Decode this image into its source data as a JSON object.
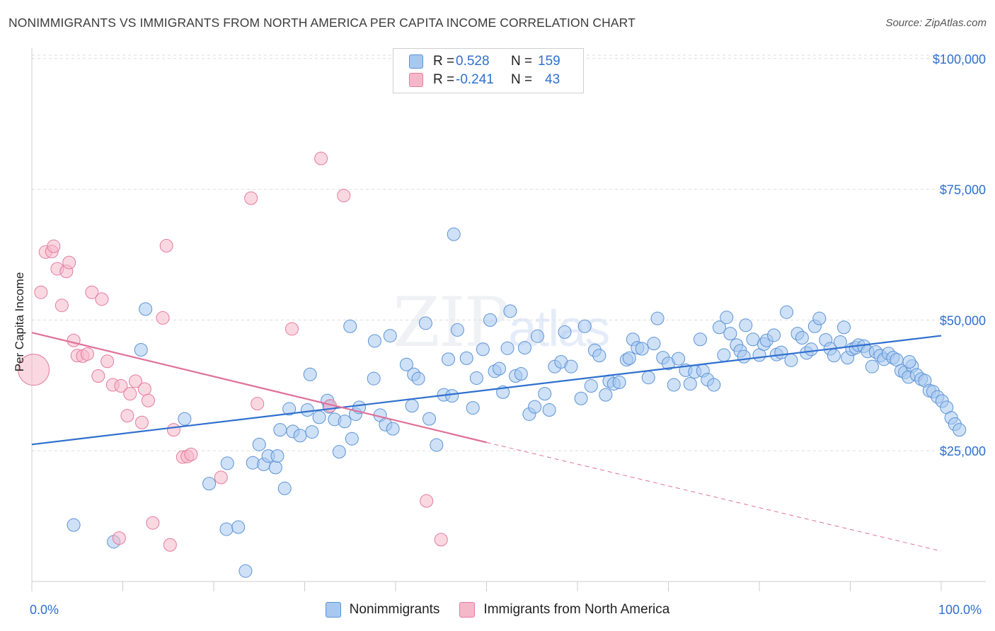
{
  "title": "NONIMMIGRANTS VS IMMIGRANTS FROM NORTH AMERICA PER CAPITA INCOME CORRELATION CHART",
  "source": "Source: ZipAtlas.com",
  "watermark": {
    "zip": "ZIP",
    "atlas": "atlas"
  },
  "legend": {
    "rows": [
      {
        "r_label": "R =",
        "r_value": "0.528",
        "n_label": "N =",
        "n_value": "159",
        "color": "#a8c8f0"
      },
      {
        "r_label": "R =",
        "r_value": "-0.241",
        "n_label": "N =",
        "n_value": "43",
        "color": "#f5b8cb"
      }
    ]
  },
  "chart_data": {
    "type": "scatter",
    "ylabel": "Per Capita Income",
    "x_tick_labels": [
      "0.0%",
      "100.0%"
    ],
    "y_tick_labels": [
      "$25,000",
      "$50,000",
      "$75,000",
      "$100,000"
    ],
    "xlim": [
      0,
      100
    ],
    "ylim": [
      0,
      102000
    ],
    "y_ticks": [
      25000,
      50000,
      75000,
      100000
    ],
    "grid": true,
    "series": [
      {
        "name": "Nonimmigrants",
        "color": "#5b93d6",
        "fill": "#a8c8f0",
        "trend": {
          "x": [
            0,
            100
          ],
          "y": [
            26200,
            47000
          ],
          "style": "solid"
        },
        "points": [
          [
            4.6,
            10800
          ],
          [
            9,
            7600
          ],
          [
            12,
            44300
          ],
          [
            12.5,
            52100
          ],
          [
            16.8,
            31100
          ],
          [
            19.5,
            18700
          ],
          [
            21.5,
            22600
          ],
          [
            21.4,
            10000
          ],
          [
            22.7,
            10400
          ],
          [
            23.5,
            2000
          ],
          [
            24.3,
            22700
          ],
          [
            25,
            26200
          ],
          [
            25.5,
            22400
          ],
          [
            26,
            24000
          ],
          [
            26.8,
            21800
          ],
          [
            27,
            24000
          ],
          [
            27.8,
            17800
          ],
          [
            27.3,
            29000
          ],
          [
            28.3,
            33000
          ],
          [
            28.7,
            28700
          ],
          [
            29.5,
            27900
          ],
          [
            30.3,
            32800
          ],
          [
            30.6,
            39600
          ],
          [
            30.8,
            28600
          ],
          [
            31.6,
            31400
          ],
          [
            32.5,
            34600
          ],
          [
            32.7,
            33400
          ],
          [
            33.3,
            31000
          ],
          [
            33.8,
            24800
          ],
          [
            34.4,
            30600
          ],
          [
            35,
            48800
          ],
          [
            35.2,
            27300
          ],
          [
            35.6,
            32000
          ],
          [
            36,
            33300
          ],
          [
            37.7,
            46000
          ],
          [
            37.6,
            38800
          ],
          [
            38.3,
            31800
          ],
          [
            38.9,
            30000
          ],
          [
            39.4,
            47000
          ],
          [
            39.7,
            29200
          ],
          [
            41.2,
            41500
          ],
          [
            41.8,
            33600
          ],
          [
            42,
            39600
          ],
          [
            42.5,
            38800
          ],
          [
            43.3,
            49400
          ],
          [
            43.7,
            31100
          ],
          [
            44.5,
            26100
          ],
          [
            45.3,
            35700
          ],
          [
            45.8,
            42500
          ],
          [
            46.2,
            35500
          ],
          [
            46.8,
            48100
          ],
          [
            46.4,
            66400
          ],
          [
            47.8,
            42700
          ],
          [
            48.5,
            33200
          ],
          [
            48.9,
            38900
          ],
          [
            49.6,
            44400
          ],
          [
            50.4,
            50000
          ],
          [
            50.9,
            40200
          ],
          [
            51.4,
            40700
          ],
          [
            51.8,
            36200
          ],
          [
            52.3,
            44600
          ],
          [
            52.6,
            51700
          ],
          [
            53.2,
            39300
          ],
          [
            53.8,
            39700
          ],
          [
            54.2,
            44700
          ],
          [
            54.7,
            32000
          ],
          [
            55.3,
            33400
          ],
          [
            55.6,
            46900
          ],
          [
            56.4,
            35900
          ],
          [
            56.9,
            32800
          ],
          [
            57.5,
            41100
          ],
          [
            58.2,
            42000
          ],
          [
            58.6,
            47700
          ],
          [
            59.3,
            41100
          ],
          [
            60.4,
            35000
          ],
          [
            60.8,
            48800
          ],
          [
            61.5,
            37400
          ],
          [
            61.9,
            44200
          ],
          [
            62.4,
            43200
          ],
          [
            63.1,
            35700
          ],
          [
            63.5,
            38300
          ],
          [
            64,
            37800
          ],
          [
            64.6,
            38100
          ],
          [
            65.4,
            42400
          ],
          [
            65.7,
            42700
          ],
          [
            66.1,
            46300
          ],
          [
            66.6,
            44700
          ],
          [
            67.1,
            44500
          ],
          [
            67.8,
            39000
          ],
          [
            68.4,
            45500
          ],
          [
            68.8,
            50300
          ],
          [
            69.4,
            42800
          ],
          [
            70,
            41700
          ],
          [
            70.6,
            37600
          ],
          [
            71.1,
            42600
          ],
          [
            71.9,
            40400
          ],
          [
            72.4,
            37800
          ],
          [
            72.9,
            40100
          ],
          [
            73.5,
            46300
          ],
          [
            73.8,
            40300
          ],
          [
            74.3,
            38600
          ],
          [
            75,
            37600
          ],
          [
            75.6,
            48600
          ],
          [
            76.1,
            43300
          ],
          [
            76.4,
            50500
          ],
          [
            76.8,
            47400
          ],
          [
            77.5,
            45200
          ],
          [
            77.9,
            44100
          ],
          [
            78.5,
            49000
          ],
          [
            78.3,
            43000
          ],
          [
            79.3,
            46300
          ],
          [
            80,
            43300
          ],
          [
            80.5,
            45400
          ],
          [
            80.8,
            46100
          ],
          [
            81.6,
            47100
          ],
          [
            81.9,
            43400
          ],
          [
            82.4,
            43800
          ],
          [
            83,
            51500
          ],
          [
            83.5,
            42300
          ],
          [
            84.2,
            47400
          ],
          [
            84.7,
            46600
          ],
          [
            85.2,
            43700
          ],
          [
            85.7,
            44400
          ],
          [
            86.1,
            48800
          ],
          [
            86.6,
            50300
          ],
          [
            87.3,
            46200
          ],
          [
            87.8,
            44500
          ],
          [
            88.2,
            43200
          ],
          [
            88.9,
            45800
          ],
          [
            89.3,
            48600
          ],
          [
            89.7,
            42800
          ],
          [
            90.2,
            44400
          ],
          [
            90.6,
            44700
          ],
          [
            90.9,
            45200
          ],
          [
            91.5,
            45000
          ],
          [
            91.9,
            44000
          ],
          [
            92.4,
            41100
          ],
          [
            92.8,
            43900
          ],
          [
            93.3,
            43200
          ],
          [
            93.7,
            42500
          ],
          [
            94.2,
            43600
          ],
          [
            94.7,
            42800
          ],
          [
            95.1,
            42400
          ],
          [
            95.6,
            40300
          ],
          [
            96,
            40000
          ],
          [
            96.4,
            39100
          ],
          [
            96.8,
            41200
          ],
          [
            97.3,
            39500
          ],
          [
            97.8,
            38700
          ],
          [
            98.2,
            38400
          ],
          [
            98.7,
            36500
          ],
          [
            99.1,
            36300
          ],
          [
            99.6,
            35300
          ],
          [
            100.1,
            34500
          ],
          [
            100.6,
            33300
          ],
          [
            101.1,
            31300
          ],
          [
            101.5,
            30100
          ],
          [
            102,
            29000
          ],
          [
            96.5,
            42000
          ]
        ]
      },
      {
        "name": "Immigrants from North America",
        "color": "#e57a9e",
        "fill": "#f5b8cb",
        "trend": {
          "x": [
            0,
            50
          ],
          "y": [
            47600,
            26600
          ],
          "style": "solid",
          "extend_x": 100,
          "extend_y": 5800
        },
        "points": [
          [
            0.2,
            40500
          ],
          [
            1,
            55300
          ],
          [
            1.5,
            63000
          ],
          [
            2.2,
            63100
          ],
          [
            2.4,
            64100
          ],
          [
            2.8,
            59800
          ],
          [
            3.3,
            52800
          ],
          [
            3.8,
            59300
          ],
          [
            4.1,
            61000
          ],
          [
            4.6,
            46100
          ],
          [
            5,
            43200
          ],
          [
            5.6,
            43100
          ],
          [
            6.1,
            43500
          ],
          [
            6.6,
            55300
          ],
          [
            7.3,
            39300
          ],
          [
            7.7,
            54000
          ],
          [
            8.3,
            42100
          ],
          [
            8.9,
            37600
          ],
          [
            9.6,
            8300
          ],
          [
            9.8,
            37400
          ],
          [
            10.5,
            31700
          ],
          [
            10.8,
            35900
          ],
          [
            11.4,
            38300
          ],
          [
            12.1,
            30400
          ],
          [
            12.4,
            36800
          ],
          [
            12.8,
            34600
          ],
          [
            13.3,
            11200
          ],
          [
            14.4,
            50400
          ],
          [
            14.8,
            64200
          ],
          [
            15.2,
            7000
          ],
          [
            15.6,
            29000
          ],
          [
            16.6,
            23800
          ],
          [
            17.1,
            23900
          ],
          [
            17.5,
            24300
          ],
          [
            20.8,
            19900
          ],
          [
            24.1,
            73300
          ],
          [
            24.8,
            34000
          ],
          [
            28.6,
            48300
          ],
          [
            31.8,
            80900
          ],
          [
            32.8,
            33600
          ],
          [
            34.3,
            73800
          ],
          [
            43.4,
            15400
          ],
          [
            45,
            8000
          ]
        ]
      }
    ]
  }
}
